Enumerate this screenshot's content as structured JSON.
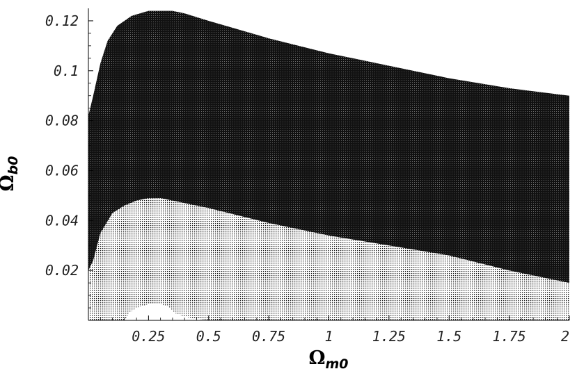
{
  "chart_data": {
    "type": "area",
    "title": "",
    "xlabel": "Ω",
    "xlabel_sub": "m0",
    "ylabel": "Ω",
    "ylabel_sub": "b0",
    "xlim": [
      0,
      2
    ],
    "ylim": [
      0,
      0.125
    ],
    "grid": false,
    "x_ticks": [
      {
        "value": 0.25,
        "label": "0.25"
      },
      {
        "value": 0.5,
        "label": "0.5"
      },
      {
        "value": 0.75,
        "label": "0.75"
      },
      {
        "value": 1,
        "label": "1"
      },
      {
        "value": 1.25,
        "label": "1.25"
      },
      {
        "value": 1.5,
        "label": "1.5"
      },
      {
        "value": 1.75,
        "label": "1.75"
      },
      {
        "value": 2,
        "label": "2"
      }
    ],
    "y_ticks": [
      {
        "value": 0.02,
        "label": "0.02"
      },
      {
        "value": 0.04,
        "label": "0.04"
      },
      {
        "value": 0.06,
        "label": "0.06"
      },
      {
        "value": 0.08,
        "label": "0.08"
      },
      {
        "value": 0.1,
        "label": "0.1"
      },
      {
        "value": 0.12,
        "label": "0.12"
      }
    ],
    "regions": [
      {
        "fill": "#000000",
        "pattern": "dense",
        "upper_boundary": [
          [
            0.0,
            0.082
          ],
          [
            0.02,
            0.09
          ],
          [
            0.05,
            0.103
          ],
          [
            0.08,
            0.112
          ],
          [
            0.12,
            0.118
          ],
          [
            0.18,
            0.122
          ],
          [
            0.25,
            0.124
          ],
          [
            0.35,
            0.124
          ],
          [
            0.4,
            0.123
          ],
          [
            0.5,
            0.12
          ],
          [
            0.75,
            0.113
          ],
          [
            1.0,
            0.107
          ],
          [
            1.25,
            0.102
          ],
          [
            1.5,
            0.097
          ],
          [
            1.75,
            0.093
          ],
          [
            2.0,
            0.09
          ]
        ],
        "lower_boundary": [
          [
            0.0,
            0.0
          ],
          [
            2.0,
            0.0
          ]
        ]
      },
      {
        "fill": "#ffffff",
        "pattern": "light-dotted",
        "upper_boundary": [
          [
            0.0,
            0.02
          ],
          [
            0.02,
            0.024
          ],
          [
            0.05,
            0.035
          ],
          [
            0.1,
            0.043
          ],
          [
            0.15,
            0.046
          ],
          [
            0.2,
            0.048
          ],
          [
            0.25,
            0.049
          ],
          [
            0.3,
            0.049
          ],
          [
            0.4,
            0.047
          ],
          [
            0.5,
            0.045
          ],
          [
            0.75,
            0.039
          ],
          [
            1.0,
            0.034
          ],
          [
            1.25,
            0.03
          ],
          [
            1.5,
            0.026
          ],
          [
            1.75,
            0.02
          ],
          [
            2.0,
            0.015
          ]
        ],
        "lower_boundary": [
          [
            0.0,
            0.0
          ],
          [
            2.0,
            0.0
          ]
        ]
      },
      {
        "fill": "#ffffff",
        "pattern": "solid",
        "upper_boundary": [
          [
            0.15,
            0.0
          ],
          [
            0.17,
            0.003
          ],
          [
            0.2,
            0.005
          ],
          [
            0.25,
            0.0065
          ],
          [
            0.3,
            0.0065
          ],
          [
            0.33,
            0.0055
          ],
          [
            0.36,
            0.003
          ],
          [
            0.4,
            0.0015
          ],
          [
            0.5,
            0.0
          ]
        ],
        "lower_boundary": [
          [
            0.15,
            0.0
          ],
          [
            0.5,
            0.0
          ]
        ]
      }
    ]
  }
}
